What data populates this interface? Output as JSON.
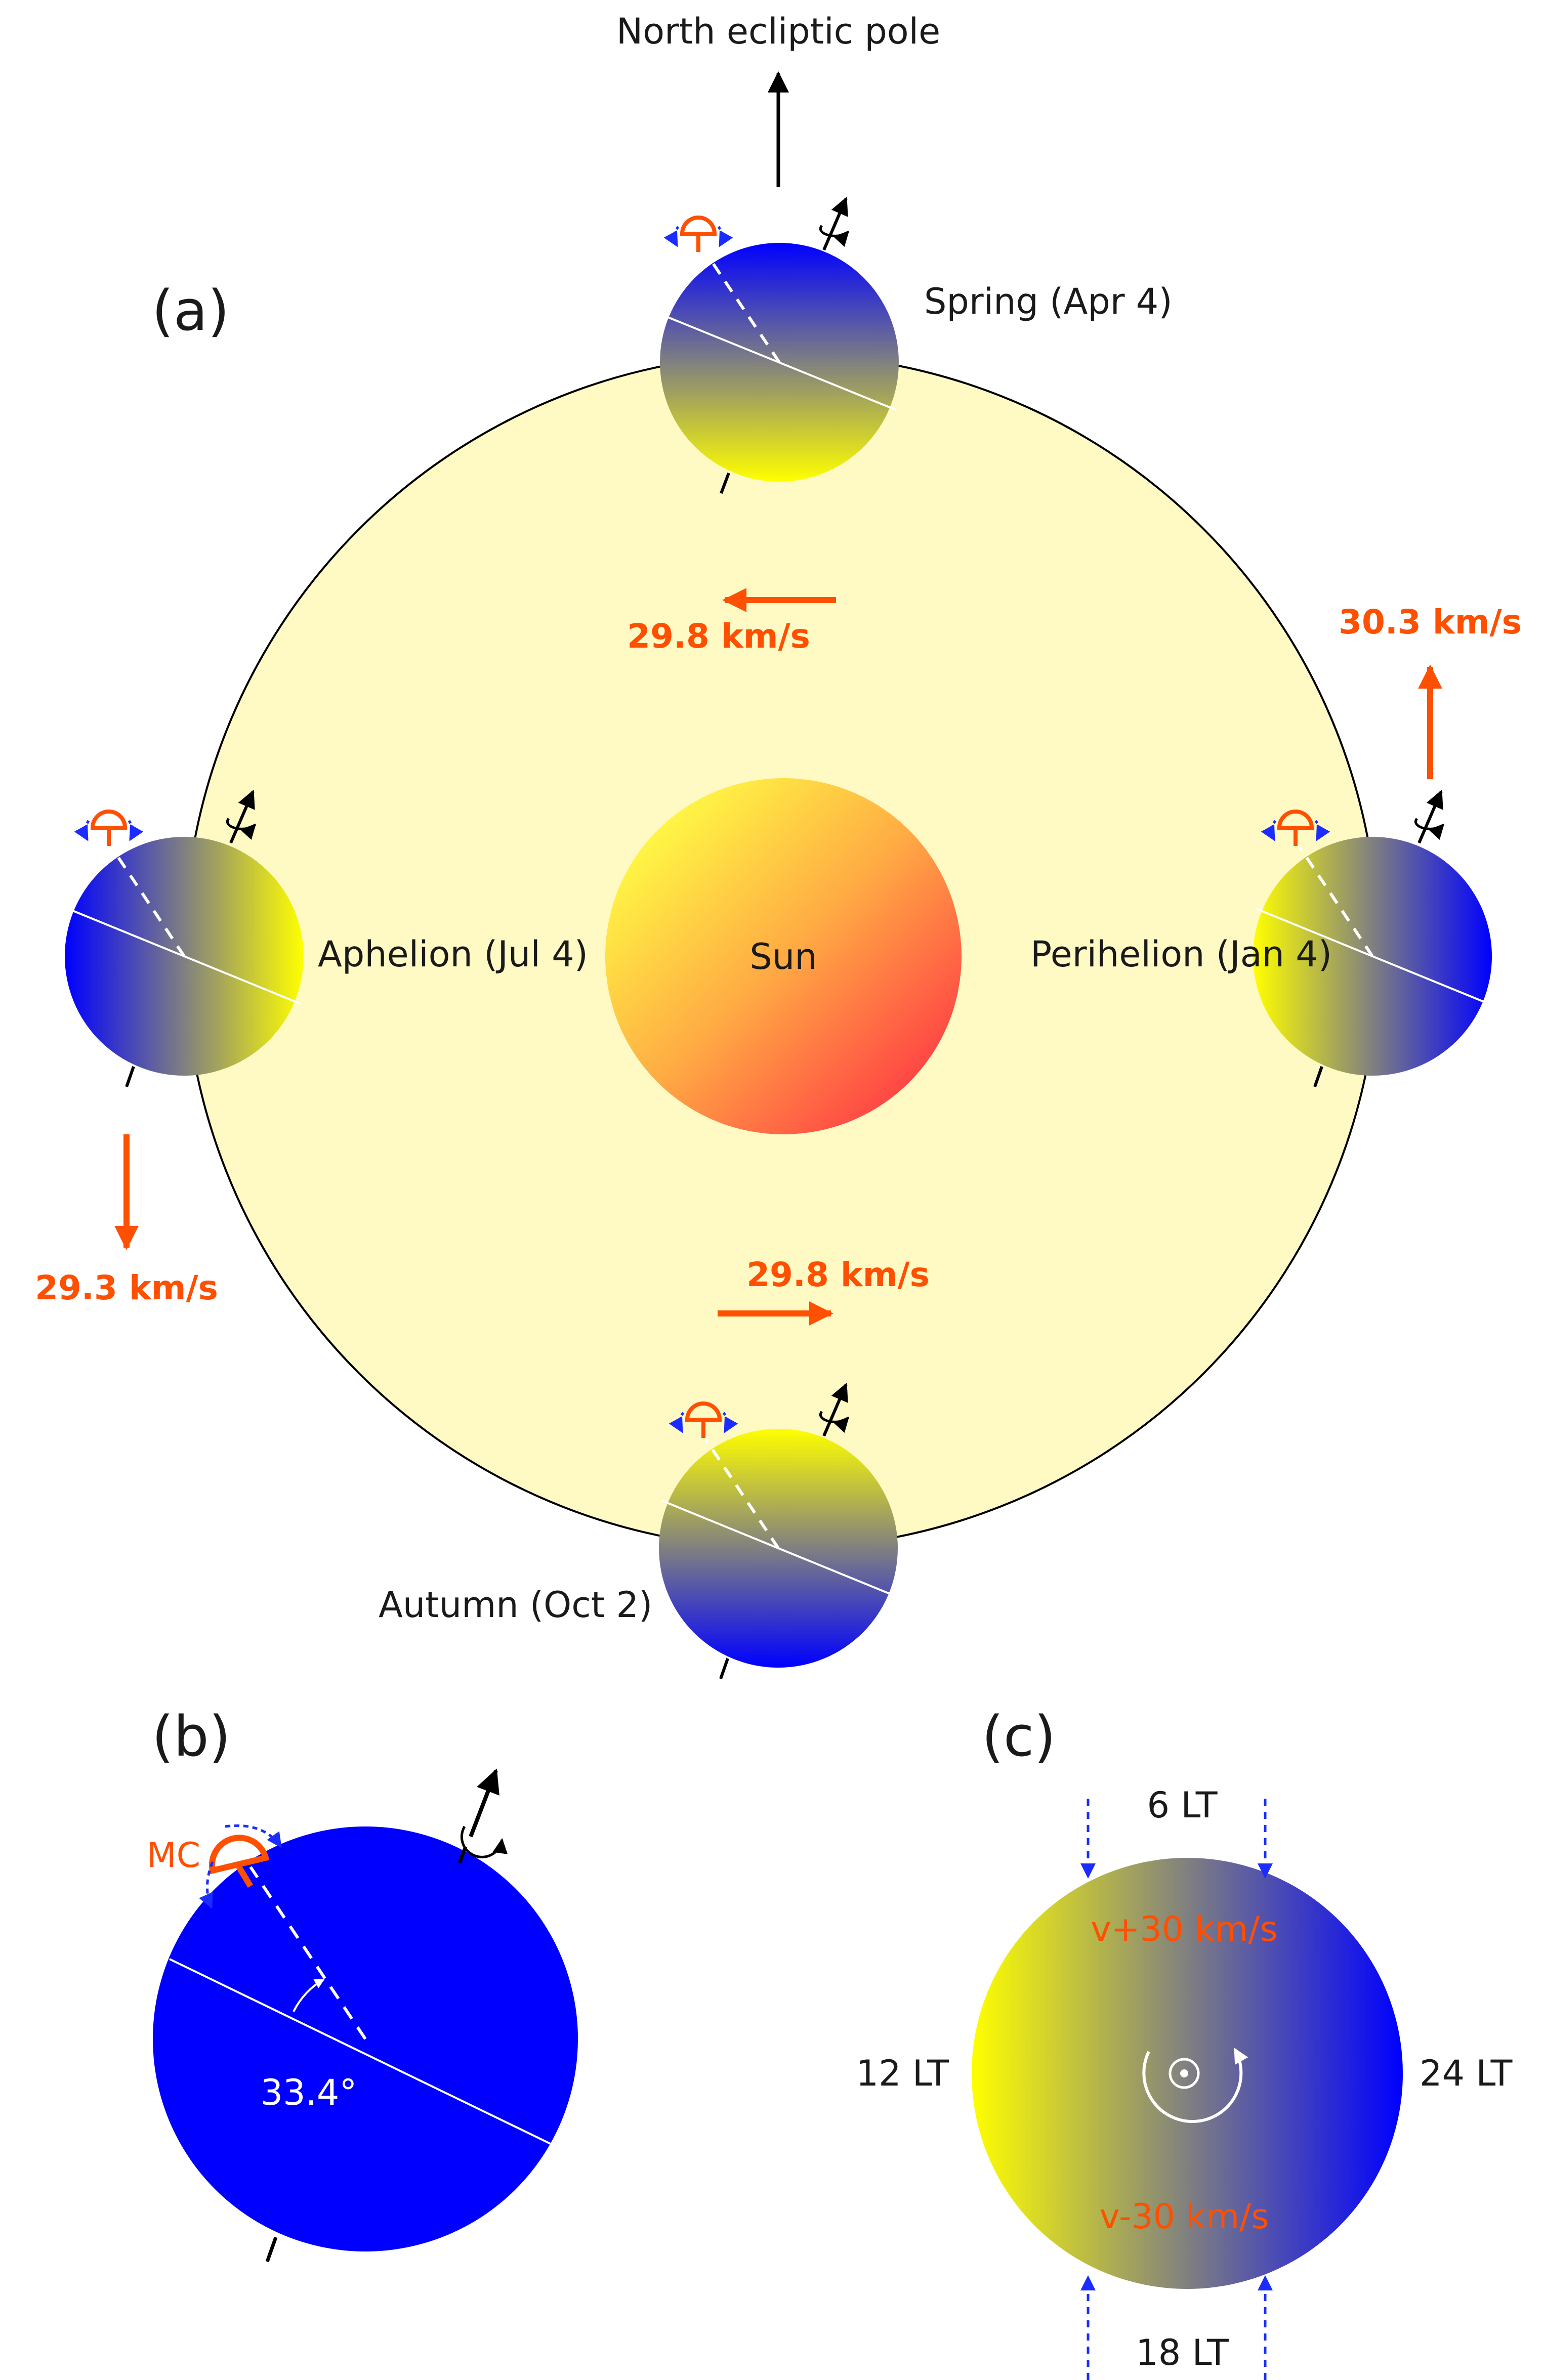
{
  "panels": {
    "a": "(a)",
    "b": "(b)",
    "c": "(c)"
  },
  "top": {
    "north_pole": "North ecliptic pole"
  },
  "sun": {
    "label": "Sun"
  },
  "positions": {
    "spring": "Spring (Apr 4)",
    "aphelion": "Aphelion (Jul 4)",
    "perihelion": "Perihelion (Jan 4)",
    "autumn": "Autumn (Oct 2)"
  },
  "speeds": {
    "spring": "29.8 km/s",
    "perihelion": "30.3 km/s",
    "aphelion": "29.3 km/s",
    "autumn": "29.8 km/s"
  },
  "panel_b": {
    "mc": "MC",
    "angle": "33.4°"
  },
  "panel_c": {
    "lt6": "6 LT",
    "lt12": "12 LT",
    "lt24": "24 LT",
    "lt18": "18 LT",
    "v_plus": "v+30 km/s",
    "v_minus": "v-30 km/s"
  },
  "colors": {
    "orbit_fill": "#fff9c4",
    "earth_blue": "#0000ff",
    "earth_yellow": "#ffff00",
    "accent_orange": "#ff4f00",
    "sun_yellow": "#ffff44",
    "sun_red": "#ff3a44"
  },
  "icons": {
    "rotation": "curved-rotation-arrow-icon",
    "spin_axis": "up-arrow-icon",
    "detector": "half-dome-detector-icon"
  }
}
